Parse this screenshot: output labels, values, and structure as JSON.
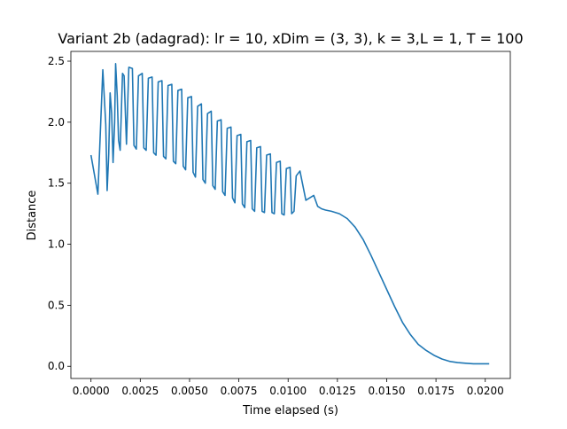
{
  "chart_data": {
    "type": "line",
    "title": "Variant 2b (adagrad): lr = 10, xDim = (3, 3), k = 3,L = 1, T = 100",
    "xlabel": "Time elapsed (s)",
    "ylabel": "Distance",
    "xlim": [
      -0.00102,
      0.02127
    ],
    "ylim": [
      -0.1,
      2.58
    ],
    "xticks": [
      0.0,
      0.0025,
      0.005,
      0.0075,
      0.01,
      0.0125,
      0.015,
      0.0175,
      0.02
    ],
    "xtick_labels": [
      "0.0000",
      "0.0025",
      "0.0050",
      "0.0075",
      "0.0100",
      "0.0125",
      "0.0150",
      "0.0175",
      "0.0200"
    ],
    "yticks": [
      0.0,
      0.5,
      1.0,
      1.5,
      2.0,
      2.5
    ],
    "ytick_labels": [
      "0.0",
      "0.5",
      "1.0",
      "1.5",
      "2.0",
      "2.5"
    ],
    "grid": false,
    "line_color": "#1f77b4",
    "series": [
      {
        "x": [
          0.0,
          0.00035,
          0.0006,
          0.00075,
          0.00082,
          0.0009,
          0.00097,
          0.00105,
          0.00112,
          0.0012,
          0.00125,
          0.00133,
          0.0014,
          0.00148,
          0.0016,
          0.00168,
          0.0018,
          0.00192,
          0.0021,
          0.00218,
          0.0023,
          0.00241,
          0.0026,
          0.00268,
          0.0028,
          0.00291,
          0.0031,
          0.00318,
          0.0033,
          0.00341,
          0.0036,
          0.00368,
          0.0038,
          0.00391,
          0.0041,
          0.00418,
          0.0043,
          0.00441,
          0.0046,
          0.00468,
          0.0048,
          0.00491,
          0.0051,
          0.00518,
          0.0053,
          0.00541,
          0.0056,
          0.00568,
          0.0058,
          0.00591,
          0.0061,
          0.00618,
          0.0063,
          0.00641,
          0.0066,
          0.00668,
          0.0068,
          0.00691,
          0.0071,
          0.00718,
          0.0073,
          0.00741,
          0.0076,
          0.00768,
          0.0078,
          0.00791,
          0.0081,
          0.00818,
          0.0083,
          0.00841,
          0.0086,
          0.00868,
          0.0088,
          0.00891,
          0.0091,
          0.00918,
          0.0093,
          0.00941,
          0.0096,
          0.00968,
          0.0098,
          0.00991,
          0.0101,
          0.01018,
          0.0103,
          0.01041,
          0.0106,
          0.0109,
          0.0111,
          0.0113,
          0.0115,
          0.0117,
          0.0119,
          0.0122,
          0.0126,
          0.013,
          0.0134,
          0.0138,
          0.0142,
          0.0146,
          0.015,
          0.0154,
          0.0158,
          0.0162,
          0.0166,
          0.017,
          0.0174,
          0.0178,
          0.0182,
          0.0186,
          0.019,
          0.0194,
          0.0198,
          0.0202
        ],
        "y": [
          1.73,
          1.41,
          2.43,
          1.98,
          1.44,
          1.74,
          2.24,
          2.07,
          1.67,
          2.0,
          2.48,
          2.22,
          1.85,
          1.77,
          2.4,
          2.38,
          1.82,
          2.45,
          2.44,
          1.81,
          1.78,
          2.38,
          2.4,
          1.79,
          1.77,
          2.36,
          2.37,
          1.75,
          1.73,
          2.33,
          2.34,
          1.72,
          1.7,
          2.3,
          2.31,
          1.68,
          1.66,
          2.26,
          2.27,
          1.64,
          1.61,
          2.2,
          2.21,
          1.59,
          1.55,
          2.13,
          2.15,
          1.53,
          1.5,
          2.07,
          2.09,
          1.48,
          1.45,
          2.01,
          2.02,
          1.43,
          1.4,
          1.95,
          1.96,
          1.38,
          1.34,
          1.89,
          1.9,
          1.33,
          1.3,
          1.84,
          1.85,
          1.29,
          1.27,
          1.79,
          1.8,
          1.27,
          1.26,
          1.73,
          1.74,
          1.26,
          1.25,
          1.67,
          1.68,
          1.25,
          1.24,
          1.62,
          1.63,
          1.25,
          1.27,
          1.56,
          1.6,
          1.36,
          1.38,
          1.4,
          1.31,
          1.29,
          1.28,
          1.27,
          1.25,
          1.21,
          1.14,
          1.04,
          0.91,
          0.77,
          0.63,
          0.49,
          0.36,
          0.26,
          0.18,
          0.13,
          0.09,
          0.06,
          0.04,
          0.03,
          0.025,
          0.02,
          0.02,
          0.02
        ]
      }
    ]
  }
}
